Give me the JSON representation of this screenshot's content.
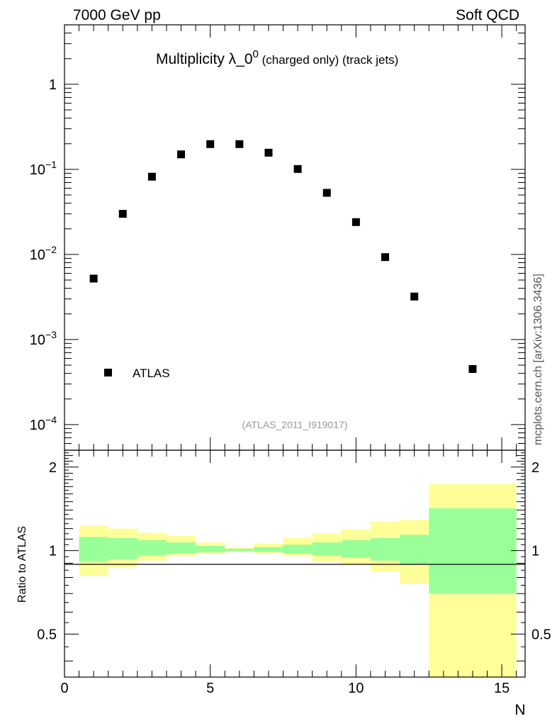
{
  "header": {
    "left": "7000 GeV pp",
    "right": "Soft QCD"
  },
  "title": {
    "main": "Multiplicity λ_0",
    "sup": "0",
    "sub": " (charged only) (track jets)"
  },
  "watermark": "(ATLAS_2011_I919017)",
  "side_label": "mcplots.cern.ch [arXiv:1306.3436]",
  "legend": {
    "label": "ATLAS",
    "position": "bottom-left"
  },
  "x_axis": {
    "label": "N",
    "ticks": [
      "0",
      "5",
      "10",
      "15"
    ]
  },
  "top_y_ticks": [
    {
      "base": "1",
      "exp": ""
    },
    {
      "base": "10",
      "exp": "−1"
    },
    {
      "base": "10",
      "exp": "−2"
    },
    {
      "base": "10",
      "exp": "−3"
    },
    {
      "base": "10",
      "exp": "−4"
    }
  ],
  "ratio_y_ticks": [
    "2",
    "1",
    "0.5"
  ],
  "ratio_ylabel": "Ratio to ATLAS",
  "colors": {
    "marker": "#000000",
    "band_inner": "#99ff99",
    "band_outer": "#ffff99",
    "frame": "#000000"
  },
  "chart_data": [
    {
      "type": "scatter",
      "title": "Multiplicity λ_0⁰ (charged only) (track jets)",
      "xlabel": "N",
      "ylabel": "",
      "xlim": [
        0,
        15.8
      ],
      "ylim": [
        5e-05,
        5
      ],
      "log_y": true,
      "series": [
        {
          "name": "ATLAS",
          "x": [
            1,
            2,
            3,
            4,
            5,
            6,
            7,
            8,
            9,
            10,
            11,
            12,
            14
          ],
          "values": [
            0.0052,
            0.03,
            0.082,
            0.15,
            0.198,
            0.198,
            0.157,
            0.101,
            0.053,
            0.024,
            0.0093,
            0.0032,
            0.00045
          ]
        }
      ]
    },
    {
      "type": "area",
      "title": "",
      "xlabel": "N",
      "ylabel": "Ratio to ATLAS",
      "xlim": [
        0,
        15.8
      ],
      "ylim": [
        0.35,
        2.3
      ],
      "reference_line": 1,
      "bin_edges": [
        0.5,
        1.5,
        2.5,
        3.5,
        4.5,
        5.5,
        6.5,
        7.5,
        8.5,
        9.5,
        10.5,
        11.5,
        12.5,
        15.5
      ],
      "series": [
        {
          "name": "stat",
          "lower": [
            0.91,
            0.93,
            0.96,
            0.975,
            0.985,
            0.995,
            0.99,
            0.975,
            0.96,
            0.945,
            0.92,
            0.89,
            0.7
          ],
          "upper": [
            1.12,
            1.11,
            1.09,
            1.07,
            1.04,
            1.015,
            1.03,
            1.05,
            1.07,
            1.09,
            1.11,
            1.14,
            1.42
          ]
        },
        {
          "name": "total",
          "lower": [
            0.81,
            0.87,
            0.92,
            0.955,
            0.975,
            0.99,
            0.98,
            0.955,
            0.91,
            0.89,
            0.84,
            0.76,
            0.35
          ],
          "upper": [
            1.23,
            1.2,
            1.16,
            1.13,
            1.07,
            1.03,
            1.06,
            1.11,
            1.15,
            1.19,
            1.27,
            1.29,
            1.74
          ]
        }
      ]
    }
  ]
}
